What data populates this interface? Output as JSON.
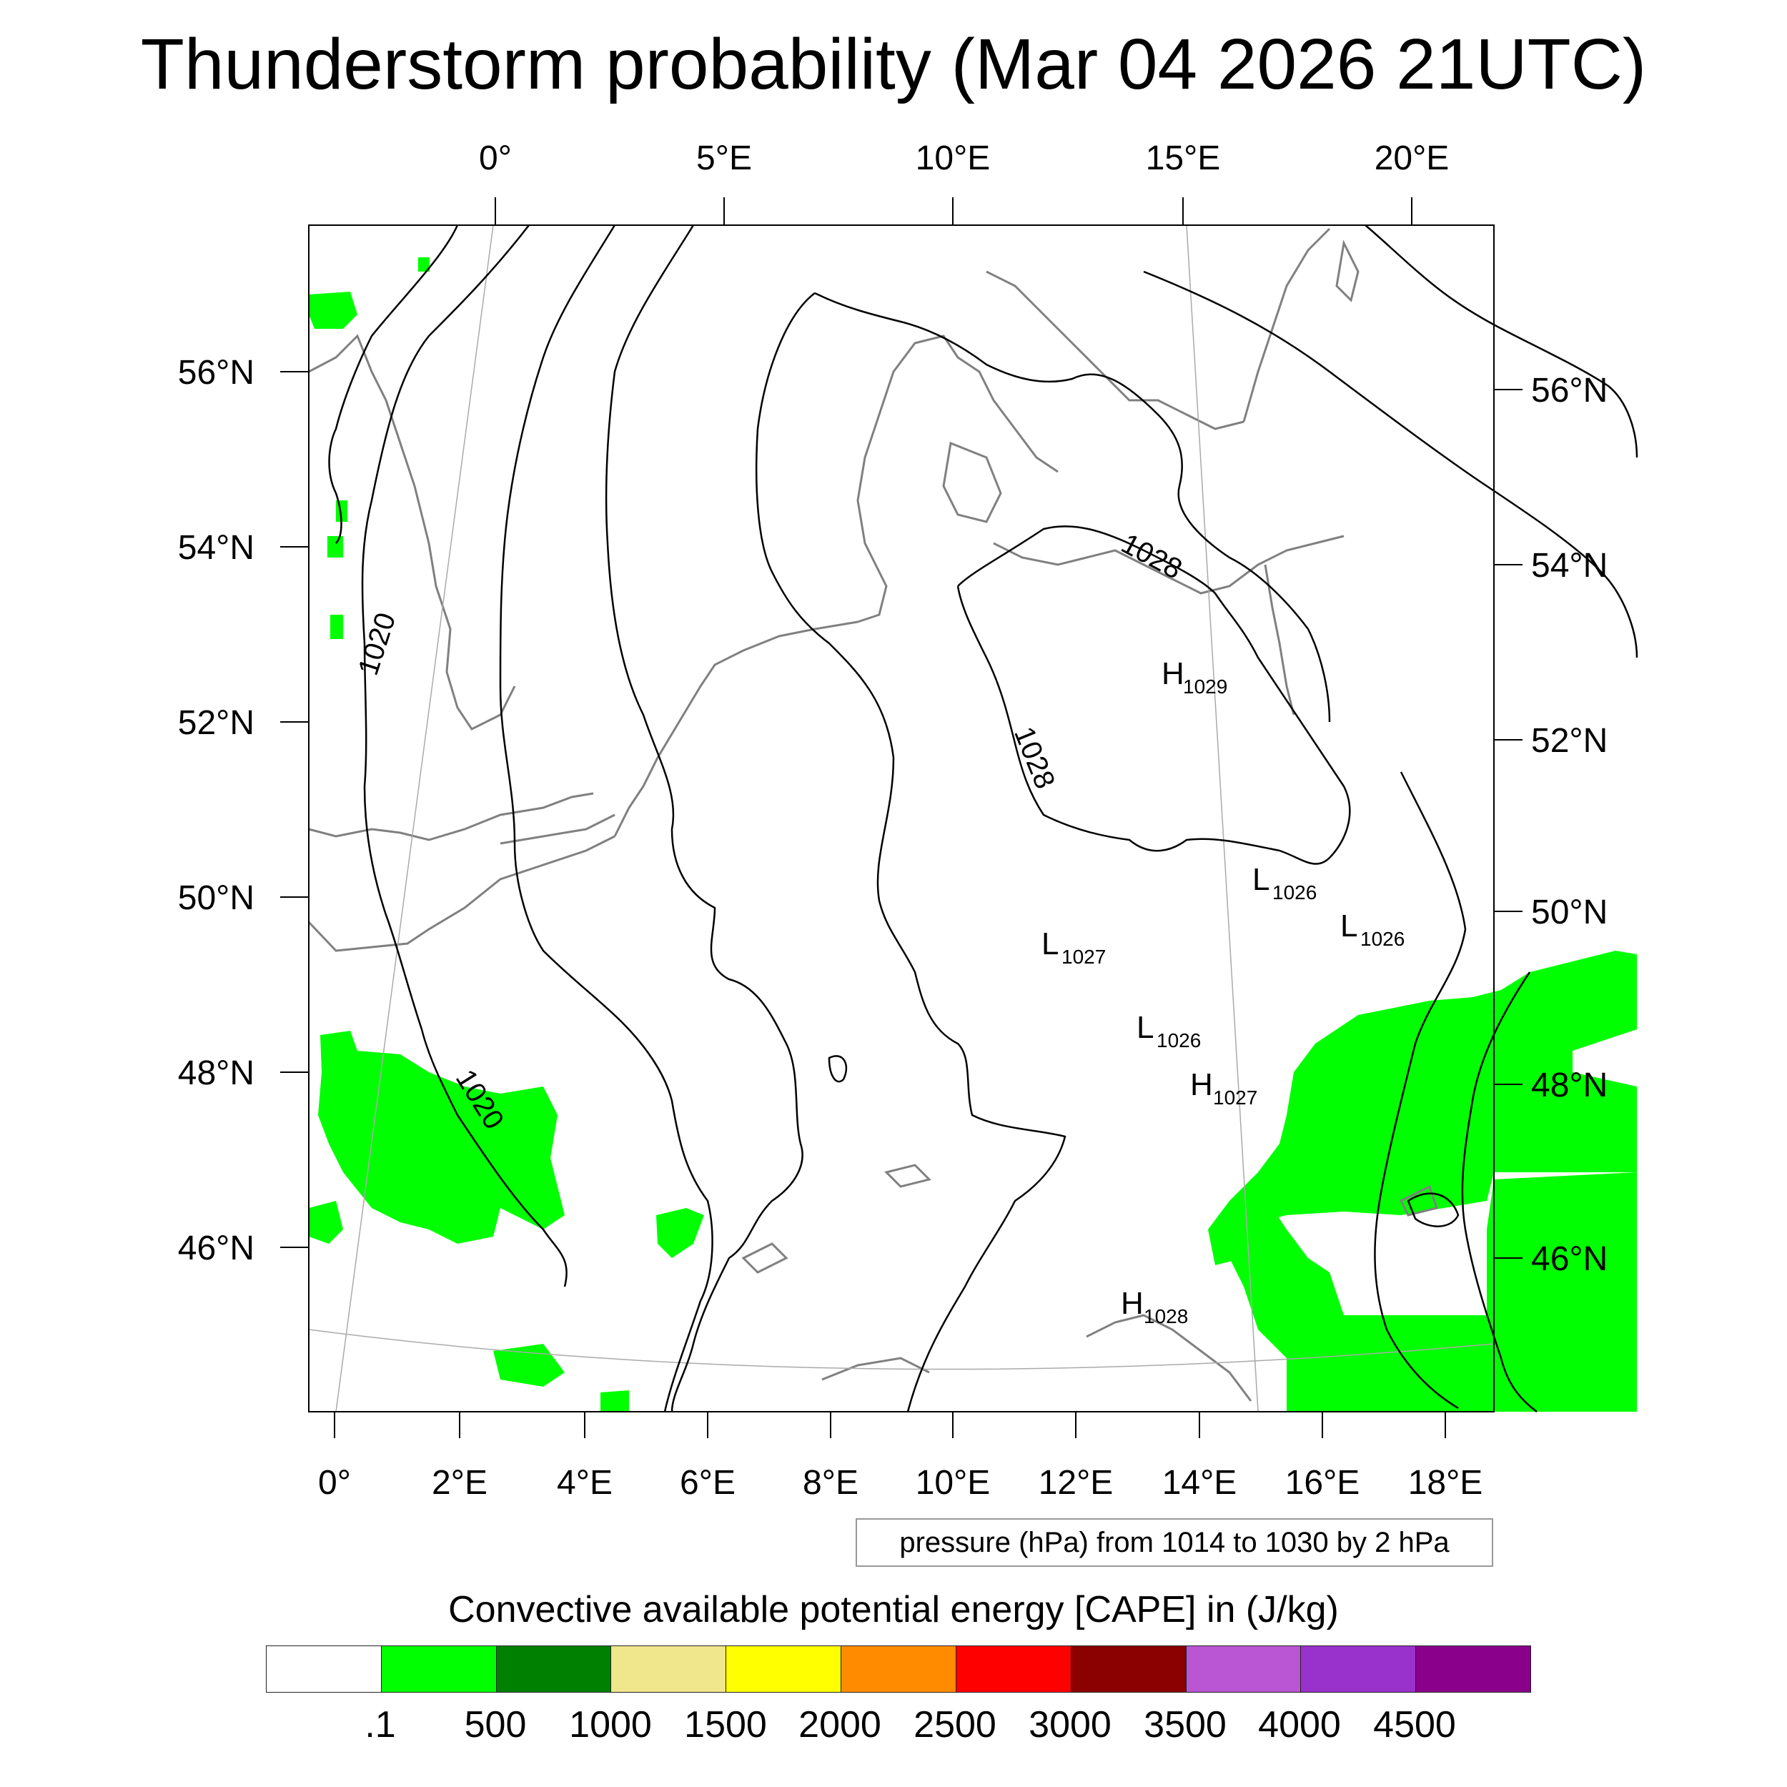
{
  "title": "Thunderstorm probability (Mar 04 2026 21UTC)",
  "map": {
    "top_lon_labels": [
      "0°",
      "5°E",
      "10°E",
      "15°E",
      "20°E"
    ],
    "bottom_lon_labels": [
      "0°",
      "2°E",
      "4°E",
      "6°E",
      "8°E",
      "10°E",
      "12°E",
      "14°E",
      "16°E",
      "18°E"
    ],
    "left_lat_labels": [
      "56°N",
      "54°N",
      "52°N",
      "50°N",
      "48°N",
      "46°N"
    ],
    "right_lat_labels": [
      "56°N",
      "54°N",
      "52°N",
      "50°N",
      "48°N",
      "46°N"
    ],
    "contour_labels": [
      "1020",
      "1020",
      "1028",
      "1028"
    ],
    "pressure_centers": [
      {
        "letter": "H",
        "value": "1029"
      },
      {
        "letter": "L",
        "value": "1026"
      },
      {
        "letter": "L",
        "value": "1026"
      },
      {
        "letter": "L",
        "value": "1027"
      },
      {
        "letter": "L",
        "value": "1026"
      },
      {
        "letter": "H",
        "value": "1027"
      },
      {
        "letter": "H",
        "value": "1028"
      }
    ],
    "cape_fill_color": "#00ff00",
    "coastline_color": "#808080",
    "isobar_color": "#000000"
  },
  "contour_info": "pressure (hPa) from 1014 to 1030 by 2 hPa",
  "colorbar": {
    "title": "Convective available potential energy [CAPE] in (J/kg)",
    "colors": [
      "#ffffff",
      "#00ff00",
      "#008000",
      "#f0e68c",
      "#ffff00",
      "#ff8c00",
      "#ff0000",
      "#8b0000",
      "#ba55d3",
      "#9932cc",
      "#8b008b"
    ],
    "labels": [
      ".1",
      "500",
      "1000",
      "1500",
      "2000",
      "2500",
      "3000",
      "3500",
      "4000",
      "4500"
    ]
  }
}
